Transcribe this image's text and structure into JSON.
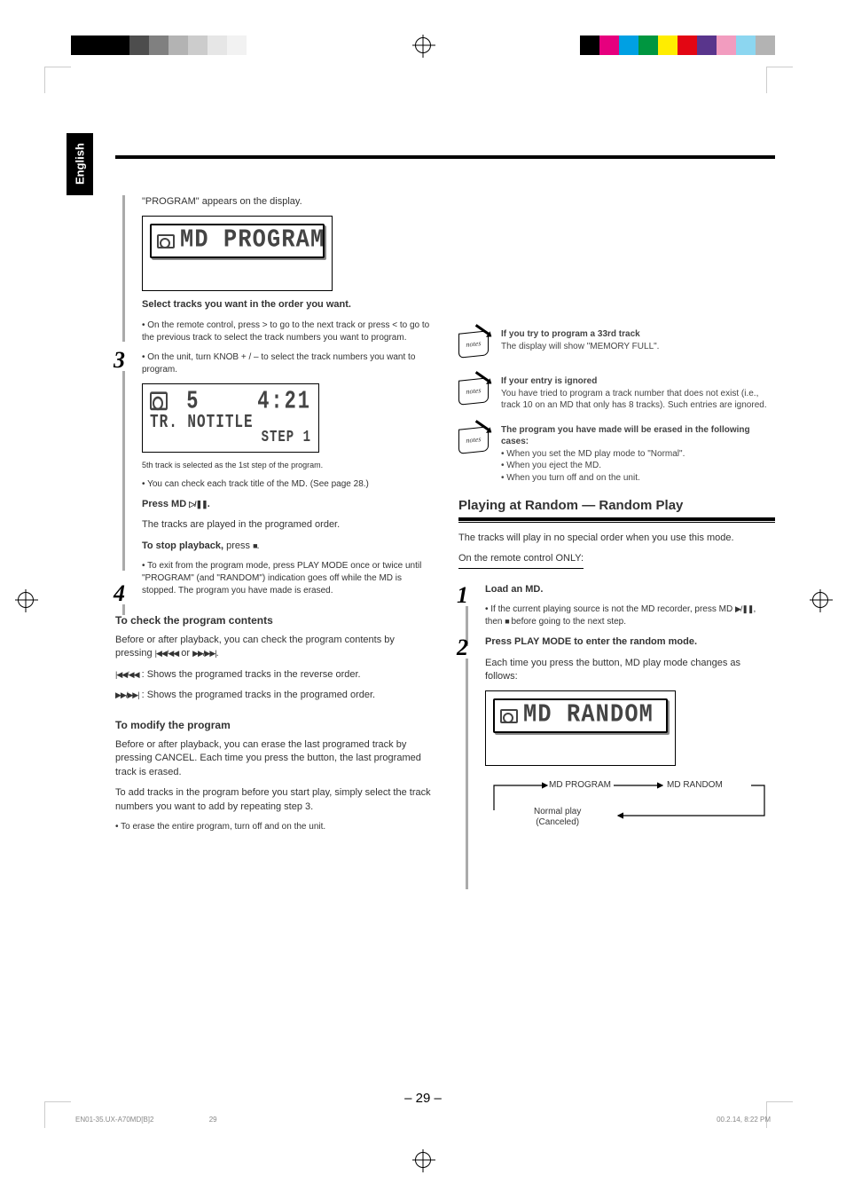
{
  "language_tab": "English",
  "page_number": "– 29 –",
  "footer_left": "EN01-35.UX-A70MD[B]2",
  "footer_right": "00.2.14, 8:22 PM",
  "reg_colors_left": [
    "#000000",
    "#000000",
    "#000000",
    "#4d4d4d",
    "#808080",
    "#b3b3b3",
    "#cccccc",
    "#e6e6e6",
    "#f2f2f2",
    "#ffffff"
  ],
  "reg_colors_right": [
    "#000000",
    "#e6007e",
    "#00a0e3",
    "#009640",
    "#ffed00",
    "#e30613",
    "#59358c",
    "#f29cbf",
    "#8cd6f0",
    "#b3b3b3"
  ],
  "left_col": {
    "intro": "\"PROGRAM\" appears on the display.",
    "lcd1": "MD PROGRAM",
    "step3": {
      "num": "3",
      "line1": "Select tracks you want in the order you want.",
      "sub1": "• On the remote control, press > to go to the next track or press < to go to the previous track to select the track numbers you want to program.",
      "sub2": "• On the unit, turn KNOB + / – to select the track numbers you want to program.",
      "lcd_row1_tr": "5",
      "lcd_row1_time": "4:21",
      "lcd_row2": "TR. NOTITLE",
      "lcd_row3": "STEP 1",
      "caption": "5th track is selected as the 1st step of the program.",
      "note": "• You can check each track title of the MD. (See page 28.)"
    },
    "step4": {
      "num": "4",
      "line1": "Press MD #/8.",
      "line2": "The tracks are played in the programed order.",
      "stop": "To stop playback, press 7.",
      "note": "• To exit from the program mode, press PLAY MODE once or twice until \"PROGRAM\" (and \"RANDOM\") indication goes off while the MD is stopped. The program you have made is erased."
    },
    "check_head": "To check the program contents",
    "check_body1": "Before or after playback, you can check the program contents by pressing 4/1 or ¡/¢.",
    "check_body2": "4/1 : Shows the programed tracks in the reverse order.",
    "check_body3": "¡/¢ : Shows the programed tracks in the programed order.",
    "modify_head": "To modify the program",
    "modify_body1": "Before or after playback, you can erase the last programed track by pressing CANCEL. Each time you press the button, the last programed track is erased.",
    "modify_body2": "To add tracks in the program before you start play, simply select the track numbers you want to add by repeating step 3.",
    "modify_body3": "• To erase the entire program, turn off and on the unit."
  },
  "right_col": {
    "note1": "If you try to program a 33rd track\nThe display will show \"MEMORY FULL\".",
    "note2a": "If your entry is ignored",
    "note2b": "You have tried to program a track number that does not exist (i.e., track 10 on an MD that only has 8 tracks). Such entries are ignored.",
    "note3a": "The program you have made will be erased in the following cases:",
    "note3b": "• When you set the MD play mode to \"Normal\".\n• When you eject the MD.\n• When you turn off and on the unit.",
    "section_head": "Playing at Random — Random Play",
    "intro": "The tracks will play in no special order when you use this mode.",
    "on_remote": "On the remote control ONLY:",
    "step1": {
      "num": "1",
      "line": "Load an MD.",
      "sub": "• If the current playing source is not the MD recorder, press MD 3/8, then 7 before going to the next step."
    },
    "step2": {
      "num": "2",
      "line": "Press PLAY MODE to enter the random mode.",
      "sub": "Each time you press the button, MD play mode changes as follows:",
      "lcd": "MD  RANDOM",
      "flow_a": "MD PROGRAM",
      "flow_b": "MD RANDOM",
      "flow_c": "Normal play\n(Canceled)"
    }
  }
}
